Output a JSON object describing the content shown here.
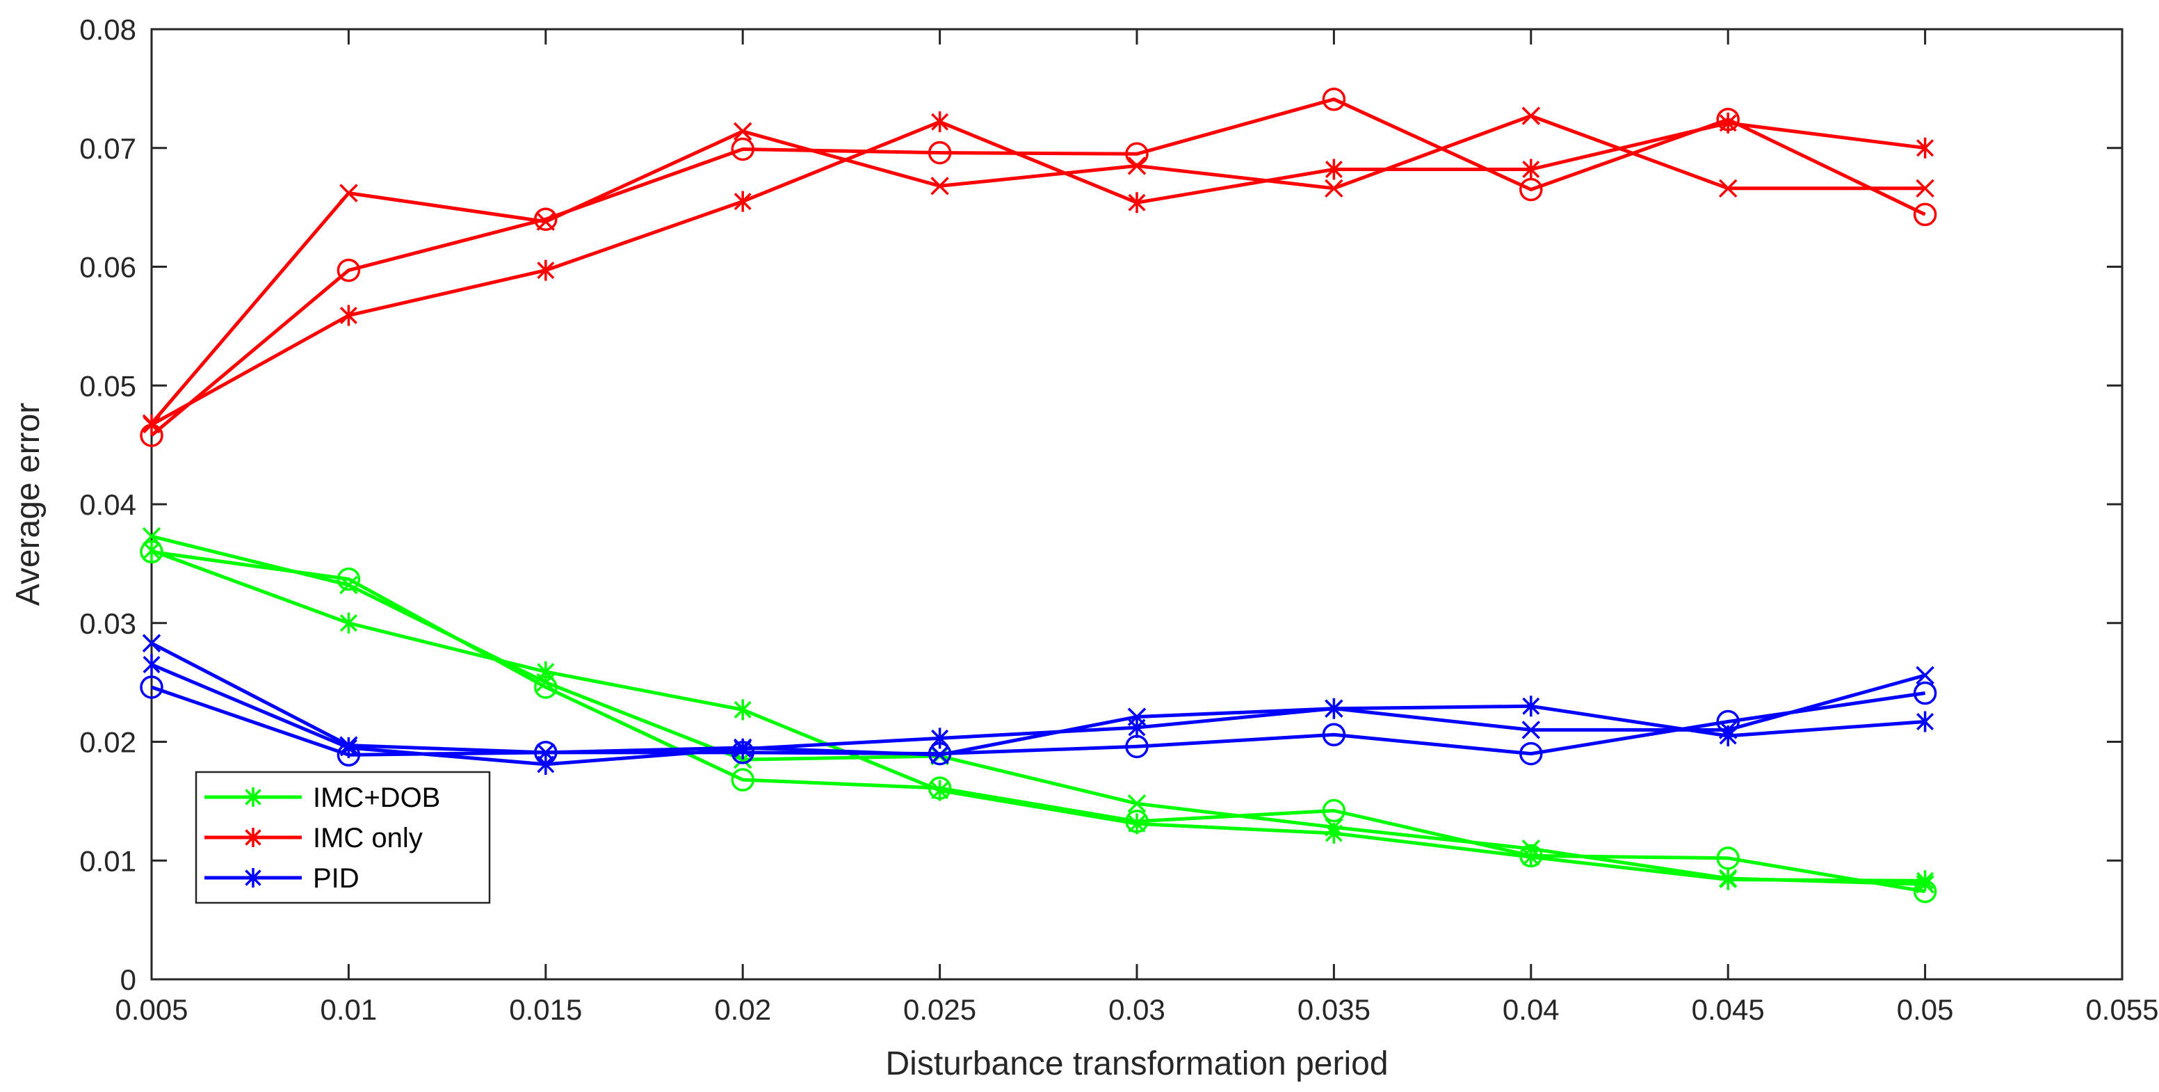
{
  "chart_data": {
    "type": "line",
    "title": "",
    "xlabel": "Disturbance transformation period",
    "ylabel": "Average error",
    "xlim": [
      0.005,
      0.055
    ],
    "ylim": [
      0,
      0.08
    ],
    "xticks": [
      0.005,
      0.01,
      0.015,
      0.02,
      0.025,
      0.03,
      0.035,
      0.04,
      0.045,
      0.05,
      0.055
    ],
    "xtick_labels": [
      "0.005",
      "0.01",
      "0.015",
      "0.02",
      "0.025",
      "0.03",
      "0.035",
      "0.04",
      "0.045",
      "0.05",
      "0.055"
    ],
    "yticks": [
      0,
      0.01,
      0.02,
      0.03,
      0.04,
      0.05,
      0.06,
      0.07,
      0.08
    ],
    "ytick_labels": [
      "0",
      "0.01",
      "0.02",
      "0.03",
      "0.04",
      "0.05",
      "0.06",
      "0.07",
      "0.08"
    ],
    "grid": false,
    "legend_position": "bottom-left",
    "legend": [
      {
        "label": "IMC+DOB",
        "color": "#00ff00",
        "marker": "asterisk"
      },
      {
        "label": "IMC only",
        "color": "#ff0000",
        "marker": "asterisk"
      },
      {
        "label": "PID",
        "color": "#0000ff",
        "marker": "asterisk"
      }
    ],
    "x": [
      0.005,
      0.01,
      0.015,
      0.02,
      0.025,
      0.03,
      0.035,
      0.04,
      0.045,
      0.05
    ],
    "series": [
      {
        "name": "IMC+DOB (*)",
        "group": "IMC+DOB",
        "color": "#00ff00",
        "marker": "asterisk",
        "values": [
          0.0361,
          0.03,
          0.0259,
          0.0227,
          0.0159,
          0.0131,
          0.0123,
          0.0103,
          0.0084,
          0.0083
        ]
      },
      {
        "name": "IMC+DOB (x)",
        "group": "IMC+DOB",
        "color": "#00ff00",
        "marker": "x",
        "values": [
          0.0373,
          0.0332,
          0.025,
          0.0185,
          0.0188,
          0.0148,
          0.0128,
          0.011,
          0.0085,
          0.008
        ]
      },
      {
        "name": "IMC+DOB (o)",
        "group": "IMC+DOB",
        "color": "#00ff00",
        "marker": "circle",
        "values": [
          0.036,
          0.0337,
          0.0246,
          0.0168,
          0.0161,
          0.0133,
          0.0142,
          0.0104,
          0.0102,
          0.0074
        ]
      },
      {
        "name": "IMC only (*)",
        "group": "IMC only",
        "color": "#ff0000",
        "marker": "asterisk",
        "values": [
          0.0467,
          0.0559,
          0.0597,
          0.0655,
          0.0722,
          0.0654,
          0.0682,
          0.0682,
          0.0721,
          0.07
        ]
      },
      {
        "name": "IMC only (x)",
        "group": "IMC only",
        "color": "#ff0000",
        "marker": "x",
        "values": [
          0.0468,
          0.0662,
          0.0638,
          0.0714,
          0.0668,
          0.0685,
          0.0666,
          0.0727,
          0.0666,
          0.0666
        ]
      },
      {
        "name": "IMC only (o)",
        "group": "IMC only",
        "color": "#ff0000",
        "marker": "circle",
        "values": [
          0.0458,
          0.0597,
          0.064,
          0.0699,
          0.0696,
          0.0695,
          0.0741,
          0.0665,
          0.0724,
          0.0644
        ]
      },
      {
        "name": "PID (*)",
        "group": "PID",
        "color": "#0000ff",
        "marker": "asterisk",
        "values": [
          0.0265,
          0.0195,
          0.0181,
          0.0194,
          0.0203,
          0.0212,
          0.0228,
          0.023,
          0.0205,
          0.0217
        ]
      },
      {
        "name": "PID (x)",
        "group": "PID",
        "color": "#0000ff",
        "marker": "x",
        "values": [
          0.0283,
          0.0197,
          0.0191,
          0.0195,
          0.0189,
          0.0221,
          0.0228,
          0.021,
          0.021,
          0.0256
        ]
      },
      {
        "name": "PID (o)",
        "group": "PID",
        "color": "#0000ff",
        "marker": "circle",
        "values": [
          0.0246,
          0.0189,
          0.0191,
          0.0191,
          0.019,
          0.0196,
          0.0206,
          0.019,
          0.0217,
          0.0241
        ]
      }
    ]
  }
}
